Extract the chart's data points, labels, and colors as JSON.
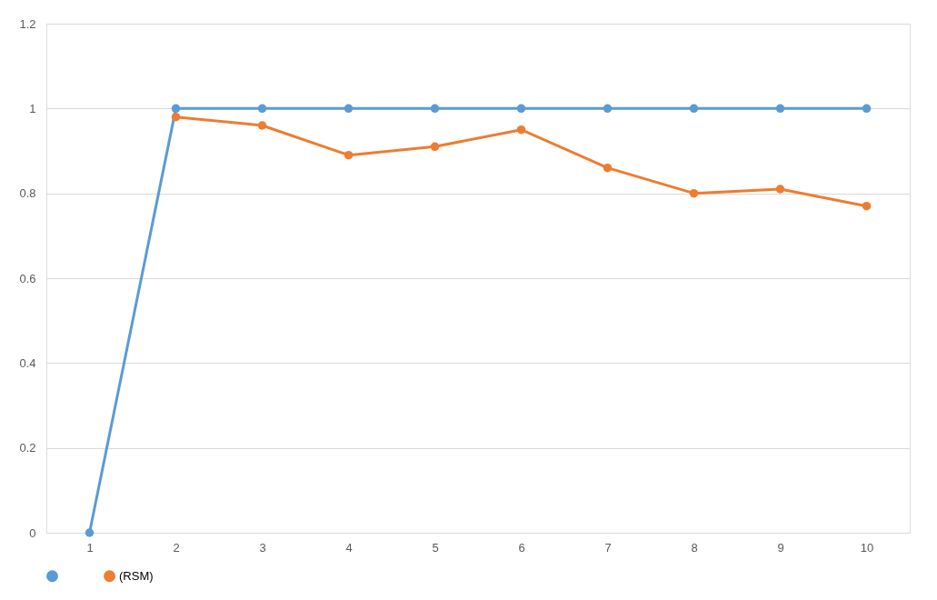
{
  "chart_data": {
    "type": "line",
    "categories": [
      "1",
      "2",
      "3",
      "4",
      "5",
      "6",
      "7",
      "8",
      "9",
      "10"
    ],
    "series": [
      {
        "color": "#5b9bd5",
        "values": [
          0,
          1,
          1,
          1,
          1,
          1,
          1,
          1,
          1,
          1
        ]
      },
      {
        "name": "(RSM)",
        "color": "#ed7d31",
        "values": [
          null,
          0.98,
          0.96,
          0.89,
          0.91,
          0.95,
          0.86,
          0.8,
          0.81,
          0.77
        ]
      }
    ],
    "ylim": [
      0,
      1.2
    ],
    "yticks": [
      0,
      0.2,
      0.4,
      0.6,
      0.8,
      1,
      1.2
    ],
    "grid": "y",
    "legend": "bottom",
    "marker": "circle",
    "line_style": "solid"
  }
}
